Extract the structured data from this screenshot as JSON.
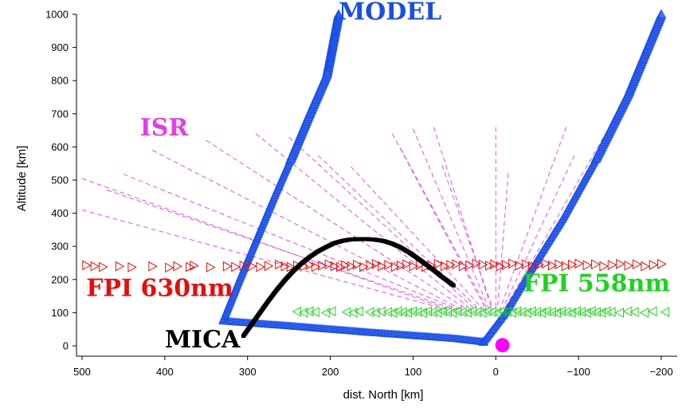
{
  "chart_data": {
    "type": "scatter",
    "xlabel": "dist. North [km]",
    "ylabel": "Altitude [km]",
    "xlim": [
      500,
      -210
    ],
    "ylim": [
      0,
      1000
    ],
    "x_ticks": [
      "500",
      "400",
      "300",
      "200",
      "100",
      "0",
      "−100",
      "−200"
    ],
    "x_tick_values": [
      500,
      400,
      300,
      200,
      100,
      0,
      -100,
      -200
    ],
    "y_ticks": [
      "0",
      "100",
      "200",
      "300",
      "400",
      "500",
      "600",
      "700",
      "800",
      "900",
      "1000"
    ],
    "y_tick_values": [
      0,
      100,
      200,
      300,
      400,
      500,
      600,
      700,
      800,
      900,
      1000
    ],
    "grid": false,
    "annotations": {
      "model": {
        "text": "MODEL",
        "color": "#1a4de6",
        "x": 190,
        "y": 985
      },
      "isr": {
        "text": "ISR",
        "color": "#e63ce6",
        "x": 430,
        "y": 635
      },
      "fpi630": {
        "text": "FPI 630nm",
        "color": "#e60d0d",
        "x": 495,
        "y": 150
      },
      "fpi558": {
        "text": "FPI 558nm",
        "color": "#1fd21f",
        "x": -33,
        "y": 165
      },
      "mica": {
        "text": "MICA",
        "color": "#000000",
        "x": 400,
        "y": -5
      }
    },
    "series": [
      {
        "key": "model",
        "marker": "triangle-up",
        "color": "#1a4de6",
        "segments": [
          {
            "x": [
              330,
              309,
              288,
              267,
              246,
              225,
              204,
              190
            ],
            "y": [
              75,
              205,
              330,
              455,
              575,
              700,
              820,
              1000
            ]
          },
          {
            "x": [
              330,
              250,
              150,
              50,
              15
            ],
            "y": [
              75,
              60,
              40,
              22,
              12
            ]
          },
          {
            "x": [
              15,
              -10,
              -40,
              -80,
              -120,
              -160,
              -200
            ],
            "y": [
              12,
              95,
              220,
              380,
              560,
              760,
              1000
            ]
          }
        ]
      },
      {
        "key": "fpi630",
        "marker": "triangle-right",
        "color": "#e60d0d",
        "x": [
          495,
          485,
          475,
          455,
          440,
          415,
          395,
          385,
          370,
          365,
          345,
          325,
          315,
          305,
          295,
          285,
          275,
          262,
          255,
          248,
          240,
          232,
          225,
          218,
          210,
          202,
          195,
          188,
          182,
          175,
          168,
          160,
          152,
          145,
          138,
          130,
          122,
          115,
          108,
          100,
          92,
          85,
          78,
          70,
          62,
          55,
          48,
          40,
          32,
          24,
          16,
          8,
          2,
          -5,
          -12,
          -20,
          -28,
          -36,
          -44,
          -52,
          -60,
          -68,
          -76,
          -84,
          -92,
          -100,
          -110,
          -120,
          -130,
          -140,
          -150,
          -160,
          -170,
          -180,
          -190,
          -200
        ],
        "y": [
          243,
          240,
          238,
          240,
          237,
          240,
          236,
          240,
          238,
          242,
          237,
          240,
          238,
          242,
          240,
          238,
          241,
          245,
          240,
          238,
          242,
          240,
          244,
          238,
          242,
          246,
          240,
          238,
          243,
          240,
          245,
          238,
          242,
          247,
          240,
          244,
          238,
          242,
          246,
          240,
          244,
          238,
          242,
          247,
          240,
          244,
          246,
          240,
          243,
          248,
          245,
          242,
          246,
          240,
          244,
          248,
          242,
          246,
          240,
          244,
          248,
          242,
          246,
          240,
          245,
          248,
          243,
          246,
          240,
          244,
          247,
          242,
          246,
          240,
          244,
          247
        ]
      },
      {
        "key": "fpi558",
        "marker": "triangle-left",
        "color": "#1fd21f",
        "x": [
          240,
          232,
          225,
          218,
          205,
          198,
          180,
          172,
          165,
          152,
          145,
          138,
          130,
          124,
          118,
          112,
          106,
          100,
          94,
          88,
          82,
          76,
          70,
          64,
          58,
          52,
          46,
          40,
          34,
          28,
          22,
          16,
          10,
          4,
          -2,
          -8,
          -14,
          -20,
          -26,
          -32,
          -38,
          -44,
          -50,
          -56,
          -62,
          -68,
          -74,
          -80,
          -86,
          -92,
          -98,
          -104,
          -110,
          -116,
          -122,
          -128,
          -134,
          -140,
          -150,
          -160,
          -168,
          -180,
          -190,
          -205
        ],
        "y": [
          103,
          100,
          104,
          102,
          100,
          104,
          102,
          100,
          104,
          102,
          100,
          104,
          102,
          100,
          104,
          102,
          100,
          104,
          102,
          100,
          104,
          102,
          100,
          104,
          102,
          100,
          104,
          102,
          100,
          104,
          102,
          100,
          104,
          102,
          100,
          104,
          102,
          100,
          104,
          102,
          100,
          104,
          102,
          100,
          104,
          102,
          100,
          104,
          102,
          100,
          104,
          102,
          100,
          104,
          102,
          100,
          104,
          102,
          100,
          104,
          102,
          100,
          104,
          102
        ]
      },
      {
        "key": "mica",
        "marker": "dot",
        "color": "#000000",
        "x": [
          305,
          295,
          285,
          275,
          265,
          255,
          245,
          235,
          225,
          215,
          205,
          195,
          185,
          175,
          165,
          155,
          145,
          135,
          125,
          115,
          105,
          95,
          85,
          75,
          65,
          55,
          50
        ],
        "y": [
          30,
          65,
          100,
          135,
          168,
          198,
          225,
          248,
          268,
          285,
          298,
          310,
          317,
          321,
          322,
          322,
          320,
          316,
          308,
          297,
          282,
          265,
          247,
          228,
          208,
          190,
          180
        ]
      },
      {
        "key": "site",
        "marker": "filled-circle",
        "color": "#ff00ff",
        "x": [
          -8
        ],
        "y": [
          2
        ]
      }
    ],
    "isr_beams": [
      {
        "x1": 500,
        "y1": 410,
        "x2": 60,
        "y2": 110
      },
      {
        "x1": 500,
        "y1": 505,
        "x2": 55,
        "y2": 108
      },
      {
        "x1": 470,
        "y1": 470,
        "x2": 50,
        "y2": 110
      },
      {
        "x1": 450,
        "y1": 518,
        "x2": 45,
        "y2": 110
      },
      {
        "x1": 415,
        "y1": 590,
        "x2": 40,
        "y2": 108
      },
      {
        "x1": 350,
        "y1": 620,
        "x2": 35,
        "y2": 110
      },
      {
        "x1": 290,
        "y1": 640,
        "x2": 30,
        "y2": 110
      },
      {
        "x1": 250,
        "y1": 630,
        "x2": 25,
        "y2": 110
      },
      {
        "x1": 215,
        "y1": 575,
        "x2": 20,
        "y2": 110
      },
      {
        "x1": 175,
        "y1": 540,
        "x2": 15,
        "y2": 110
      },
      {
        "x1": 125,
        "y1": 640,
        "x2": 12,
        "y2": 110
      },
      {
        "x1": 115,
        "y1": 595,
        "x2": 10,
        "y2": 110
      },
      {
        "x1": 100,
        "y1": 655,
        "x2": 8,
        "y2": 110
      },
      {
        "x1": 75,
        "y1": 660,
        "x2": 5,
        "y2": 110
      },
      {
        "x1": 65,
        "y1": 545,
        "x2": 3,
        "y2": 110
      },
      {
        "x1": 0,
        "y1": 660,
        "x2": 0,
        "y2": 110
      },
      {
        "x1": -15,
        "y1": 520,
        "x2": -2,
        "y2": 110
      },
      {
        "x1": -85,
        "y1": 660,
        "x2": -5,
        "y2": 110
      },
      {
        "x1": -95,
        "y1": 575,
        "x2": -8,
        "y2": 110
      },
      {
        "x1": -135,
        "y1": 650,
        "x2": -10,
        "y2": 110
      }
    ]
  }
}
